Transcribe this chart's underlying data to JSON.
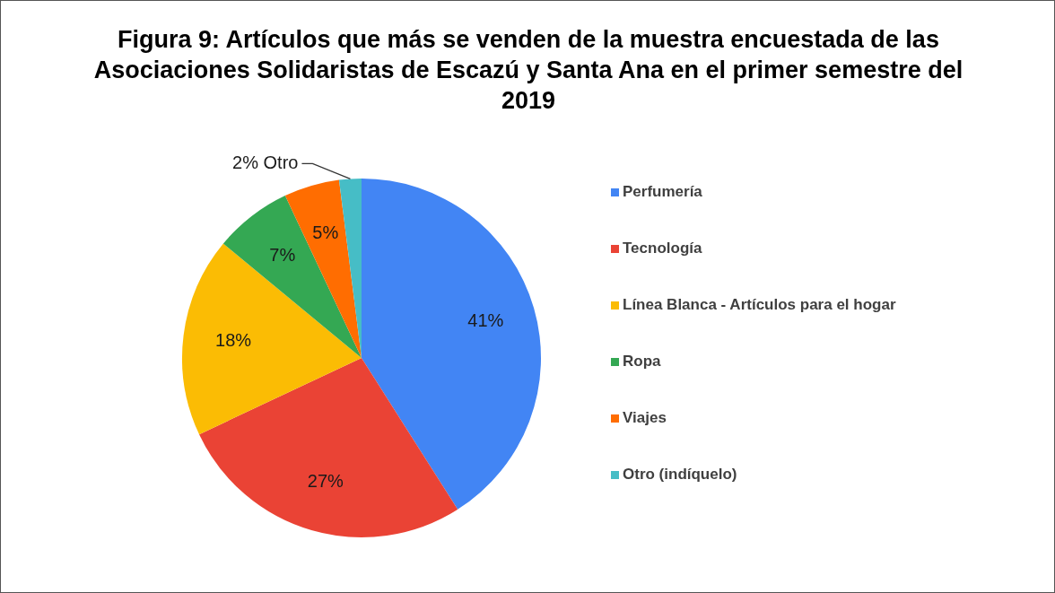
{
  "chart_data": {
    "type": "pie",
    "title": "Figura 9: Artículos que más se venden de la muestra encuestada de las Asociaciones  Solidaristas de Escazú y Santa Ana en el primer semestre del 2019",
    "categories": [
      "Perfumería",
      "Tecnología",
      "Línea Blanca - Artículos para el hogar",
      "Ropa",
      "Viajes",
      "Otro (indíquelo)"
    ],
    "values": [
      41,
      27,
      18,
      7,
      5,
      2
    ],
    "colors": [
      "#4285f4",
      "#ea4335",
      "#fbbc04",
      "#34a853",
      "#ff6d01",
      "#46bdc6"
    ],
    "value_labels": [
      "41%",
      "27%",
      "18%",
      "7%",
      "5%",
      "2% Otro"
    ],
    "legend": "right"
  }
}
